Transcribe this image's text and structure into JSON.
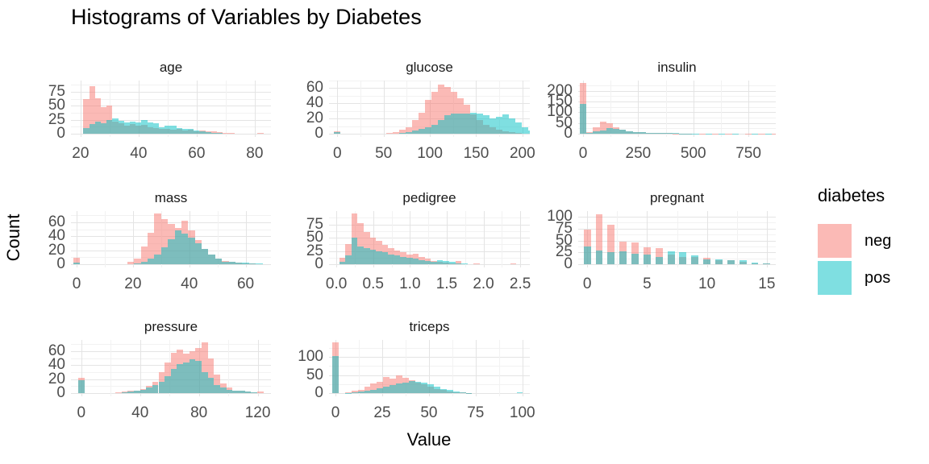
{
  "title": "Histograms of Variables by Diabetes",
  "axis": {
    "x_label": "Value",
    "y_label": "Count"
  },
  "legend": {
    "title": "diabetes",
    "items": [
      {
        "label": "neg",
        "color": "#F8766D"
      },
      {
        "label": "pos",
        "color": "#00BFC4"
      }
    ]
  },
  "colors": {
    "neg_fill": "rgba(248,118,109,0.5)",
    "pos_fill": "rgba(0,191,196,0.5)",
    "grid_major": "#E4E4E4",
    "grid_minor": "#F2F2F2",
    "tick_text": "#4d4d4d"
  },
  "chart_data": {
    "type": "bar",
    "chart_kind": "overlaid histograms, faceted by variable",
    "group_variable": "diabetes",
    "groups": [
      "neg",
      "pos"
    ],
    "legend_position": "right",
    "grid": true,
    "facets": [
      {
        "name": "age",
        "x_range": [
          16.7,
          85.6
        ],
        "x_ticks": [
          20,
          40,
          60,
          80
        ],
        "x_tick_labels": [
          "20",
          "40",
          "60",
          "80"
        ],
        "y_ticks": [
          0,
          25,
          50,
          75
        ],
        "y_max": 95,
        "bin_start": 21,
        "bin_width": 2,
        "bin_step": 2,
        "neg": [
          62,
          85,
          64,
          47,
          51,
          22,
          18,
          15,
          17,
          14,
          16,
          12,
          10,
          9,
          8,
          7,
          8,
          6,
          7,
          5,
          6,
          5,
          4,
          3,
          2,
          1,
          0,
          0,
          0,
          0,
          1
        ],
        "pos": [
          10,
          17,
          22,
          18,
          25,
          28,
          23,
          20,
          22,
          20,
          24,
          20,
          18,
          12,
          14,
          15,
          10,
          8,
          9,
          6,
          5,
          3,
          2,
          1,
          0,
          0,
          0,
          0,
          0,
          0,
          0
        ]
      },
      {
        "name": "glucose",
        "x_range": [
          -9,
          208
        ],
        "x_ticks": [
          0,
          50,
          100,
          150,
          200
        ],
        "x_tick_labels": [
          "0",
          "50",
          "100",
          "150",
          "200"
        ],
        "y_ticks": [
          0,
          20,
          40,
          60
        ],
        "y_max": 70,
        "bin_start": -3.5,
        "bin_width": 7,
        "bin_step": 7,
        "neg": [
          3,
          0,
          0,
          0,
          0,
          0,
          0,
          0,
          1,
          2,
          5,
          9,
          18,
          28,
          45,
          55,
          65,
          62,
          55,
          47,
          38,
          25,
          18,
          12,
          8,
          5,
          3,
          2,
          1,
          0,
          0
        ],
        "pos": [
          2,
          0,
          0,
          0,
          0,
          0,
          0,
          0,
          0,
          0,
          1,
          2,
          4,
          6,
          8,
          12,
          18,
          24,
          26,
          26,
          27,
          28,
          26,
          24,
          20,
          22,
          25,
          20,
          15,
          8,
          4
        ]
      },
      {
        "name": "insulin",
        "x_range": [
          -22,
          874
        ],
        "x_ticks": [
          0,
          250,
          500,
          750
        ],
        "x_tick_labels": [
          "0",
          "250",
          "500",
          "750"
        ],
        "y_ticks": [
          0,
          50,
          100,
          150,
          200
        ],
        "y_max": 248,
        "bin_start": -15,
        "bin_width": 30,
        "bin_step": 30,
        "neg": [
          236,
          8,
          30,
          58,
          48,
          30,
          18,
          12,
          8,
          6,
          4,
          3,
          2,
          2,
          1,
          1,
          1,
          0,
          1,
          0,
          1,
          0,
          1,
          0,
          0,
          1,
          0,
          1,
          0,
          1
        ],
        "pos": [
          139,
          5,
          10,
          15,
          25,
          22,
          18,
          12,
          8,
          6,
          5,
          4,
          3,
          2,
          2,
          1,
          1,
          1,
          0,
          1,
          0,
          1,
          0,
          1,
          0,
          0,
          1,
          0,
          1,
          0
        ]
      },
      {
        "name": "mass",
        "x_range": [
          -2,
          69
        ],
        "x_ticks": [
          0,
          20,
          40,
          60
        ],
        "x_tick_labels": [
          "0",
          "20",
          "40",
          "60"
        ],
        "y_ticks": [
          0,
          20,
          40,
          60
        ],
        "y_max": 76,
        "bin_start": -1.2,
        "bin_width": 2.4,
        "bin_step": 2.4,
        "neg": [
          9,
          0,
          0,
          0,
          0,
          0,
          0,
          0,
          3,
          8,
          25,
          45,
          72,
          64,
          58,
          52,
          62,
          48,
          34,
          22,
          14,
          8,
          5,
          3,
          2,
          1,
          1,
          0,
          0,
          0
        ],
        "pos": [
          2,
          0,
          0,
          0,
          0,
          0,
          0,
          0,
          0,
          1,
          3,
          8,
          14,
          24,
          36,
          48,
          44,
          38,
          30,
          22,
          14,
          8,
          4,
          3,
          2,
          2,
          1,
          1,
          0,
          0
        ]
      },
      {
        "name": "pedigree",
        "x_range": [
          -0.1,
          2.63
        ],
        "x_ticks": [
          0,
          0.5,
          1,
          1.5,
          2,
          2.5
        ],
        "x_tick_labels": [
          "0.0",
          "0.5",
          "1.0",
          "1.5",
          "2.0",
          "2.5"
        ],
        "y_ticks": [
          0,
          25,
          50,
          75
        ],
        "y_max": 100,
        "bin_start": 0.04,
        "bin_width": 0.083,
        "bin_step": 0.083,
        "neg": [
          12,
          38,
          95,
          78,
          60,
          50,
          44,
          36,
          30,
          26,
          22,
          18,
          20,
          14,
          10,
          6,
          4,
          3,
          2,
          6,
          0,
          0,
          1,
          0,
          0,
          0,
          0,
          0,
          2,
          0
        ],
        "pos": [
          5,
          16,
          50,
          34,
          30,
          28,
          25,
          22,
          18,
          16,
          14,
          12,
          10,
          8,
          6,
          5,
          8,
          6,
          4,
          2,
          1,
          0,
          0,
          0,
          0,
          0,
          0,
          0,
          0,
          0
        ]
      },
      {
        "name": "pregnant",
        "x_range": [
          -0.75,
          15.75
        ],
        "x_ticks": [
          0,
          5,
          10,
          15
        ],
        "x_tick_labels": [
          "0",
          "5",
          "10",
          "15"
        ],
        "y_ticks": [
          0,
          25,
          50,
          75,
          100
        ],
        "y_max": 112,
        "bin_start": -0.3,
        "bin_width": 0.6,
        "bin_step": 1,
        "neg": [
          73,
          106,
          84,
          48,
          45,
          36,
          34,
          20,
          16,
          16,
          14,
          9,
          8,
          5,
          2,
          1
        ],
        "pos": [
          38,
          29,
          25,
          27,
          22,
          20,
          16,
          28,
          25,
          18,
          10,
          11,
          8,
          8,
          3,
          1
        ]
      },
      {
        "name": "pressure",
        "x_range": [
          -7,
          129
        ],
        "x_ticks": [
          0,
          40,
          80,
          120
        ],
        "x_tick_labels": [
          "0",
          "40",
          "80",
          "120"
        ],
        "y_ticks": [
          0,
          20,
          40,
          60
        ],
        "y_max": 76,
        "bin_start": -2.1,
        "bin_width": 4.2,
        "bin_step": 4.2,
        "neg": [
          22,
          0,
          0,
          0,
          0,
          0,
          1,
          2,
          3,
          4,
          6,
          10,
          16,
          30,
          44,
          58,
          62,
          56,
          60,
          64,
          72,
          50,
          26,
          14,
          8,
          4,
          3,
          2,
          1,
          2
        ],
        "pos": [
          19,
          0,
          0,
          0,
          0,
          0,
          0,
          1,
          2,
          3,
          5,
          8,
          12,
          16,
          24,
          34,
          42,
          44,
          48,
          46,
          30,
          22,
          12,
          8,
          5,
          4,
          3,
          2,
          1,
          0
        ]
      },
      {
        "name": "triceps",
        "x_range": [
          -3.5,
          104
        ],
        "x_ticks": [
          0,
          25,
          50,
          75,
          100
        ],
        "x_tick_labels": [
          "0",
          "25",
          "50",
          "75",
          "100"
        ],
        "y_ticks": [
          0,
          50,
          100
        ],
        "y_max": 147,
        "bin_start": -1.7,
        "bin_width": 3.4,
        "bin_step": 3.4,
        "neg": [
          140,
          0,
          3,
          6,
          10,
          18,
          26,
          32,
          44,
          40,
          48,
          42,
          36,
          30,
          24,
          18,
          12,
          8,
          5,
          3,
          2,
          1,
          0,
          0,
          0,
          0,
          0,
          0,
          0,
          0
        ],
        "pos": [
          103,
          0,
          1,
          2,
          4,
          7,
          10,
          14,
          18,
          22,
          26,
          30,
          34,
          32,
          28,
          24,
          18,
          12,
          8,
          4,
          2,
          1,
          0,
          0,
          0,
          0,
          0,
          0,
          0,
          3
        ]
      }
    ]
  }
}
